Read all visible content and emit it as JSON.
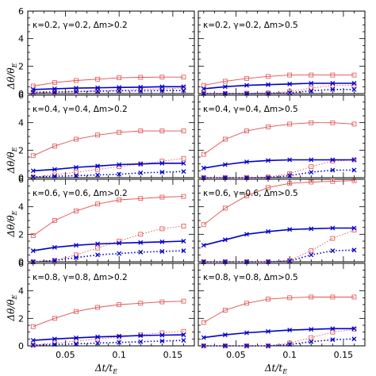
{
  "figure": {
    "xlabel": "Δt/t",
    "xlabel_sub": "E",
    "ylabel": "Δθ/θ",
    "ylabel_sub": "E"
  },
  "colors": {
    "red": "#e05050",
    "blue": "#0000cc",
    "frame": "#000000"
  },
  "chart_data": [
    {
      "type": "line",
      "panel_label": "κ=0.2, γ=0.2, Δm>0.2",
      "x": [
        0.02,
        0.04,
        0.06,
        0.08,
        0.1,
        0.12,
        0.14,
        0.16
      ],
      "xlim": [
        0.015,
        0.17
      ],
      "ylim": [
        0,
        6
      ],
      "xticks": [
        0.05,
        0.1,
        0.15
      ],
      "yticks": [
        0,
        2,
        4,
        6
      ],
      "series": [
        {
          "color": "red",
          "line": "solid",
          "marker": "square",
          "values": [
            0.55,
            0.8,
            0.95,
            1.05,
            1.15,
            1.18,
            1.2,
            1.2
          ]
        },
        {
          "color": "red",
          "line": "dotted",
          "marker": "square",
          "values": [
            0.05,
            0.1,
            0.15,
            0.2,
            0.25,
            0.3,
            0.35,
            0.4
          ]
        },
        {
          "color": "blue",
          "line": "solid",
          "marker": "cross",
          "values": [
            0.3,
            0.35,
            0.4,
            0.42,
            0.45,
            0.47,
            0.5,
            0.5
          ]
        },
        {
          "color": "blue",
          "line": "dotted",
          "marker": "cross",
          "values": [
            0.1,
            0.12,
            0.15,
            0.18,
            0.2,
            0.2,
            0.22,
            0.22
          ]
        }
      ]
    },
    {
      "type": "line",
      "panel_label": "κ=0.2, γ=0.2, Δm>0.5",
      "x": [
        0.02,
        0.04,
        0.06,
        0.08,
        0.1,
        0.12,
        0.14,
        0.16
      ],
      "xlim": [
        0.015,
        0.17
      ],
      "ylim": [
        0,
        6
      ],
      "xticks": [
        0.05,
        0.1,
        0.15
      ],
      "yticks": [
        0,
        2,
        4,
        6
      ],
      "series": [
        {
          "color": "red",
          "line": "solid",
          "marker": "square",
          "values": [
            0.6,
            0.9,
            1.1,
            1.25,
            1.35,
            1.35,
            1.35,
            1.35
          ]
        },
        {
          "color": "red",
          "line": "dotted",
          "marker": "square",
          "values": [
            0.02,
            0.02,
            0.03,
            0.05,
            0.15,
            0.4,
            0.6,
            0.6
          ]
        },
        {
          "color": "blue",
          "line": "solid",
          "marker": "cross",
          "values": [
            0.35,
            0.5,
            0.6,
            0.65,
            0.7,
            0.75,
            0.75,
            0.75
          ]
        },
        {
          "color": "blue",
          "line": "dotted",
          "marker": "cross",
          "values": [
            0.0,
            0.0,
            0.0,
            0.0,
            0.05,
            0.2,
            0.3,
            0.3
          ]
        }
      ]
    },
    {
      "type": "line",
      "panel_label": "κ=0.4, γ=0.4, Δm>0.2",
      "x": [
        0.02,
        0.04,
        0.06,
        0.08,
        0.1,
        0.12,
        0.14,
        0.16
      ],
      "xlim": [
        0.015,
        0.17
      ],
      "ylim": [
        0,
        6
      ],
      "xticks": [
        0.05,
        0.1,
        0.15
      ],
      "yticks": [
        0,
        2,
        4,
        6
      ],
      "series": [
        {
          "color": "red",
          "line": "solid",
          "marker": "square",
          "values": [
            1.6,
            2.3,
            2.8,
            3.1,
            3.3,
            3.4,
            3.4,
            3.4
          ]
        },
        {
          "color": "red",
          "line": "dotted",
          "marker": "square",
          "values": [
            0.05,
            0.2,
            0.4,
            0.6,
            0.8,
            1.0,
            1.2,
            1.4
          ]
        },
        {
          "color": "blue",
          "line": "solid",
          "marker": "cross",
          "values": [
            0.5,
            0.6,
            0.75,
            0.85,
            0.95,
            1.0,
            1.05,
            1.05
          ]
        },
        {
          "color": "blue",
          "line": "dotted",
          "marker": "cross",
          "values": [
            0.05,
            0.1,
            0.15,
            0.2,
            0.25,
            0.35,
            0.4,
            0.45
          ]
        }
      ]
    },
    {
      "type": "line",
      "panel_label": "κ=0.4, γ=0.4, Δm>0.5",
      "x": [
        0.02,
        0.04,
        0.06,
        0.08,
        0.1,
        0.12,
        0.14,
        0.16
      ],
      "xlim": [
        0.015,
        0.17
      ],
      "ylim": [
        0,
        6
      ],
      "xticks": [
        0.05,
        0.1,
        0.15
      ],
      "yticks": [
        0,
        2,
        4,
        6
      ],
      "series": [
        {
          "color": "red",
          "line": "solid",
          "marker": "square",
          "values": [
            1.7,
            2.8,
            3.4,
            3.7,
            3.9,
            4.0,
            4.0,
            3.9
          ]
        },
        {
          "color": "red",
          "line": "dotted",
          "marker": "square",
          "values": [
            0.0,
            0.0,
            0.0,
            0.05,
            0.3,
            0.8,
            1.2,
            1.3
          ]
        },
        {
          "color": "blue",
          "line": "solid",
          "marker": "cross",
          "values": [
            0.7,
            0.95,
            1.15,
            1.25,
            1.3,
            1.3,
            1.3,
            1.3
          ]
        },
        {
          "color": "blue",
          "line": "dotted",
          "marker": "cross",
          "values": [
            0.0,
            0.0,
            0.0,
            0.0,
            0.15,
            0.4,
            0.55,
            0.55
          ]
        }
      ]
    },
    {
      "type": "line",
      "panel_label": "κ=0.6, γ=0.6, Δm>0.2",
      "x": [
        0.02,
        0.04,
        0.06,
        0.08,
        0.1,
        0.12,
        0.14,
        0.16
      ],
      "xlim": [
        0.015,
        0.17
      ],
      "ylim": [
        0,
        6
      ],
      "xticks": [
        0.05,
        0.1,
        0.15
      ],
      "yticks": [
        0,
        2,
        4,
        6
      ],
      "series": [
        {
          "color": "red",
          "line": "solid",
          "marker": "square",
          "values": [
            1.9,
            3.0,
            3.7,
            4.2,
            4.5,
            4.6,
            4.7,
            4.75
          ]
        },
        {
          "color": "red",
          "line": "dotted",
          "marker": "square",
          "values": [
            0.0,
            0.1,
            0.5,
            1.0,
            1.5,
            2.0,
            2.4,
            2.6
          ]
        },
        {
          "color": "blue",
          "line": "solid",
          "marker": "cross",
          "values": [
            0.8,
            1.05,
            1.2,
            1.3,
            1.35,
            1.4,
            1.45,
            1.5
          ]
        },
        {
          "color": "blue",
          "line": "dotted",
          "marker": "cross",
          "values": [
            0.0,
            0.1,
            0.3,
            0.5,
            0.6,
            0.7,
            0.75,
            0.8
          ]
        }
      ]
    },
    {
      "type": "line",
      "panel_label": "κ=0.6, γ=0.6, Δm>0.5",
      "x": [
        0.02,
        0.04,
        0.06,
        0.08,
        0.1,
        0.12,
        0.14,
        0.16
      ],
      "xlim": [
        0.015,
        0.17
      ],
      "ylim": [
        0,
        6
      ],
      "xticks": [
        0.05,
        0.1,
        0.15
      ],
      "yticks": [
        0,
        2,
        4,
        6
      ],
      "series": [
        {
          "color": "red",
          "line": "solid",
          "marker": "square",
          "values": [
            2.7,
            3.9,
            4.8,
            5.4,
            5.7,
            5.8,
            5.85,
            5.9
          ]
        },
        {
          "color": "red",
          "line": "dotted",
          "marker": "square",
          "values": [
            0.0,
            0.0,
            0.0,
            0.0,
            0.1,
            0.8,
            1.7,
            2.3
          ]
        },
        {
          "color": "blue",
          "line": "solid",
          "marker": "cross",
          "values": [
            1.2,
            1.6,
            2.0,
            2.2,
            2.35,
            2.4,
            2.45,
            2.45
          ]
        },
        {
          "color": "blue",
          "line": "dotted",
          "marker": "cross",
          "values": [
            0.0,
            0.0,
            0.0,
            0.0,
            0.05,
            0.5,
            0.8,
            0.85
          ]
        }
      ]
    },
    {
      "type": "line",
      "panel_label": "κ=0.8, γ=0.8, Δm>0.2",
      "x": [
        0.02,
        0.04,
        0.06,
        0.08,
        0.1,
        0.12,
        0.14,
        0.16
      ],
      "xlim": [
        0.015,
        0.17
      ],
      "ylim": [
        0,
        6
      ],
      "xticks": [
        0.05,
        0.1,
        0.15
      ],
      "yticks": [
        0,
        2,
        4,
        6
      ],
      "series": [
        {
          "color": "red",
          "line": "solid",
          "marker": "square",
          "values": [
            1.4,
            2.0,
            2.5,
            2.8,
            3.0,
            3.1,
            3.2,
            3.25
          ]
        },
        {
          "color": "red",
          "line": "dotted",
          "marker": "square",
          "values": [
            0.05,
            0.2,
            0.35,
            0.5,
            0.65,
            0.8,
            0.95,
            1.05
          ]
        },
        {
          "color": "blue",
          "line": "solid",
          "marker": "cross",
          "values": [
            0.4,
            0.5,
            0.58,
            0.65,
            0.7,
            0.75,
            0.78,
            0.8
          ]
        },
        {
          "color": "blue",
          "line": "dotted",
          "marker": "cross",
          "values": [
            0.05,
            0.1,
            0.15,
            0.2,
            0.25,
            0.3,
            0.35,
            0.4
          ]
        }
      ]
    },
    {
      "type": "line",
      "panel_label": "κ=0.8, γ=0.8, Δm>0.5",
      "x": [
        0.02,
        0.04,
        0.06,
        0.08,
        0.1,
        0.12,
        0.14,
        0.16
      ],
      "xlim": [
        0.015,
        0.17
      ],
      "ylim": [
        0,
        6
      ],
      "xticks": [
        0.05,
        0.1,
        0.15
      ],
      "yticks": [
        0,
        2,
        4,
        6
      ],
      "series": [
        {
          "color": "red",
          "line": "solid",
          "marker": "square",
          "values": [
            1.7,
            2.6,
            3.1,
            3.4,
            3.5,
            3.55,
            3.55,
            3.55
          ]
        },
        {
          "color": "red",
          "line": "dotted",
          "marker": "square",
          "values": [
            0.0,
            0.0,
            0.0,
            0.0,
            0.2,
            0.6,
            1.0,
            1.2
          ]
        },
        {
          "color": "blue",
          "line": "solid",
          "marker": "cross",
          "values": [
            0.6,
            0.8,
            0.95,
            1.05,
            1.15,
            1.2,
            1.25,
            1.25
          ]
        },
        {
          "color": "blue",
          "line": "dotted",
          "marker": "cross",
          "values": [
            0.0,
            0.0,
            0.0,
            0.0,
            0.1,
            0.3,
            0.45,
            0.5
          ]
        }
      ]
    }
  ]
}
